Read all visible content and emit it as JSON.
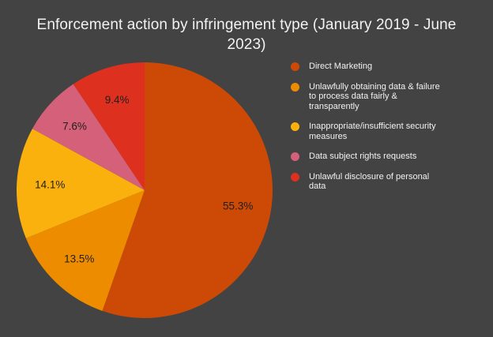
{
  "title": "Enforcement action by infringement type (January 2019 - June 2023)",
  "colors": {
    "background": "#434343",
    "title_text": "#F2F2F2",
    "legend_text": "#F2F2F2",
    "slice_label_text": "#1F1F1F"
  },
  "chart_data": {
    "type": "pie",
    "title": "Enforcement action by infringement type (January 2019 - June 2023)",
    "start_angle_deg": 0,
    "direction": "clockwise",
    "legend_position": "right",
    "data_labels": "percent",
    "series": [
      {
        "name": "Direct Marketing",
        "value": 55.3,
        "label": "55.3%",
        "color": "#CC4A06",
        "legend_lines": [
          "Direct Marketing"
        ]
      },
      {
        "name": "Unlawfully obtaining data & failure to process data fairly & transparently",
        "value": 13.5,
        "label": "13.5%",
        "color": "#EE8C00",
        "legend_lines": [
          "Unlawfully obtaining data & failure",
          "to process data fairly &",
          "transparently"
        ]
      },
      {
        "name": "Inappropriate/insufficient security measures",
        "value": 14.1,
        "label": "14.1%",
        "color": "#FBB10D",
        "legend_lines": [
          "Inappropriate/insufficient security",
          "measures"
        ]
      },
      {
        "name": "Data subject rights requests",
        "value": 7.6,
        "label": "7.6%",
        "color": "#D5607A",
        "legend_lines": [
          "Data subject rights requests"
        ]
      },
      {
        "name": "Unlawful disclosure of personal data",
        "value": 9.4,
        "label": "9.4%",
        "color": "#DE301F",
        "legend_lines": [
          "Unlawful disclosure of personal",
          "data"
        ]
      }
    ]
  }
}
